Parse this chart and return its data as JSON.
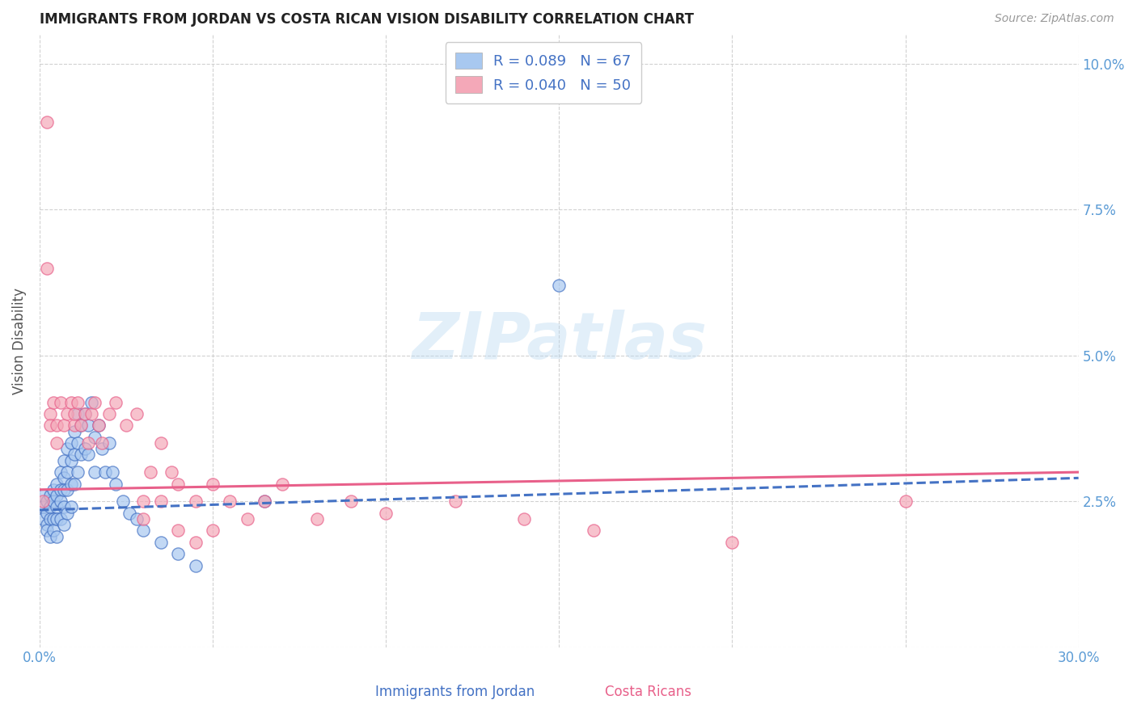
{
  "title": "IMMIGRANTS FROM JORDAN VS COSTA RICAN VISION DISABILITY CORRELATION CHART",
  "source": "Source: ZipAtlas.com",
  "ylabel": "Vision Disability",
  "x_label_left": "Immigrants from Jordan",
  "x_label_right": "Costa Ricans",
  "x_min": 0.0,
  "x_max": 0.3,
  "y_min": 0.0,
  "y_max": 0.105,
  "color_jordan": "#a8c8f0",
  "color_costa": "#f4a8b8",
  "color_jordan_line": "#4472c4",
  "color_costa_line": "#e8608a",
  "color_text_blue": "#4472c4",
  "color_axis_label": "#5b9bd5",
  "jordan_trend_x0": 0.0,
  "jordan_trend_y0": 0.0235,
  "jordan_trend_x1": 0.3,
  "jordan_trend_y1": 0.029,
  "costa_trend_x0": 0.0,
  "costa_trend_y0": 0.027,
  "costa_trend_x1": 0.3,
  "costa_trend_y1": 0.03,
  "jordan_scatter_x": [
    0.001,
    0.001,
    0.001,
    0.002,
    0.002,
    0.002,
    0.002,
    0.003,
    0.003,
    0.003,
    0.003,
    0.004,
    0.004,
    0.004,
    0.004,
    0.005,
    0.005,
    0.005,
    0.005,
    0.005,
    0.006,
    0.006,
    0.006,
    0.006,
    0.007,
    0.007,
    0.007,
    0.007,
    0.007,
    0.008,
    0.008,
    0.008,
    0.008,
    0.009,
    0.009,
    0.009,
    0.009,
    0.01,
    0.01,
    0.01,
    0.011,
    0.011,
    0.011,
    0.012,
    0.012,
    0.013,
    0.013,
    0.014,
    0.014,
    0.015,
    0.016,
    0.016,
    0.017,
    0.018,
    0.019,
    0.02,
    0.021,
    0.022,
    0.024,
    0.026,
    0.028,
    0.03,
    0.035,
    0.04,
    0.045,
    0.15,
    0.065
  ],
  "jordan_scatter_y": [
    0.026,
    0.024,
    0.022,
    0.025,
    0.023,
    0.021,
    0.02,
    0.026,
    0.024,
    0.022,
    0.019,
    0.027,
    0.025,
    0.022,
    0.02,
    0.028,
    0.026,
    0.024,
    0.022,
    0.019,
    0.03,
    0.027,
    0.025,
    0.022,
    0.032,
    0.029,
    0.027,
    0.024,
    0.021,
    0.034,
    0.03,
    0.027,
    0.023,
    0.035,
    0.032,
    0.028,
    0.024,
    0.037,
    0.033,
    0.028,
    0.04,
    0.035,
    0.03,
    0.038,
    0.033,
    0.04,
    0.034,
    0.038,
    0.033,
    0.042,
    0.036,
    0.03,
    0.038,
    0.034,
    0.03,
    0.035,
    0.03,
    0.028,
    0.025,
    0.023,
    0.022,
    0.02,
    0.018,
    0.016,
    0.014,
    0.062,
    0.025
  ],
  "costa_scatter_x": [
    0.001,
    0.002,
    0.002,
    0.003,
    0.003,
    0.004,
    0.005,
    0.005,
    0.006,
    0.007,
    0.008,
    0.009,
    0.01,
    0.01,
    0.011,
    0.012,
    0.013,
    0.014,
    0.015,
    0.016,
    0.017,
    0.018,
    0.02,
    0.022,
    0.025,
    0.028,
    0.03,
    0.032,
    0.035,
    0.038,
    0.04,
    0.045,
    0.05,
    0.055,
    0.06,
    0.065,
    0.07,
    0.08,
    0.09,
    0.1,
    0.12,
    0.14,
    0.16,
    0.2,
    0.25,
    0.03,
    0.035,
    0.04,
    0.045,
    0.05
  ],
  "costa_scatter_y": [
    0.025,
    0.09,
    0.065,
    0.04,
    0.038,
    0.042,
    0.038,
    0.035,
    0.042,
    0.038,
    0.04,
    0.042,
    0.038,
    0.04,
    0.042,
    0.038,
    0.04,
    0.035,
    0.04,
    0.042,
    0.038,
    0.035,
    0.04,
    0.042,
    0.038,
    0.04,
    0.025,
    0.03,
    0.035,
    0.03,
    0.028,
    0.025,
    0.028,
    0.025,
    0.022,
    0.025,
    0.028,
    0.022,
    0.025,
    0.023,
    0.025,
    0.022,
    0.02,
    0.018,
    0.025,
    0.022,
    0.025,
    0.02,
    0.018,
    0.02
  ]
}
